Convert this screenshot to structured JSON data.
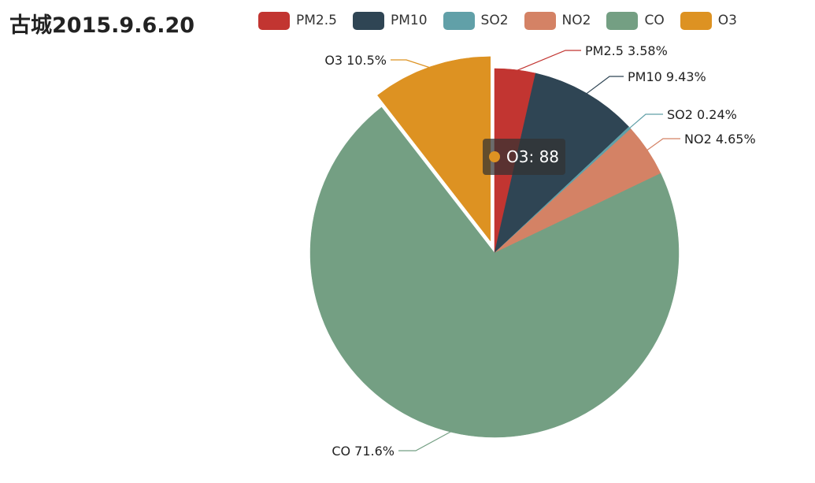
{
  "chart_data": {
    "type": "pie",
    "title": "古城2015.9.6.20",
    "legend_position": "top",
    "slices": [
      {
        "name": "PM2.5",
        "percent": 3.58,
        "label": "PM2.5 3.58%",
        "color": "#c23531"
      },
      {
        "name": "PM10",
        "percent": 9.43,
        "label": "PM10 9.43%",
        "color": "#2f4554"
      },
      {
        "name": "SO2",
        "percent": 0.24,
        "label": "SO2 0.24%",
        "color": "#61a0a8"
      },
      {
        "name": "NO2",
        "percent": 4.65,
        "label": "NO2 4.65%",
        "color": "#d48265"
      },
      {
        "name": "CO",
        "percent": 71.6,
        "label": "CO 71.6%",
        "color": "#749f83"
      },
      {
        "name": "O3",
        "percent": 10.5,
        "label": "O3 10.5%",
        "color": "#dd9222",
        "highlighted": true
      }
    ],
    "tooltip": {
      "series": "O3",
      "value": 88,
      "text": "O3: 88",
      "color": "#dd9222"
    }
  }
}
